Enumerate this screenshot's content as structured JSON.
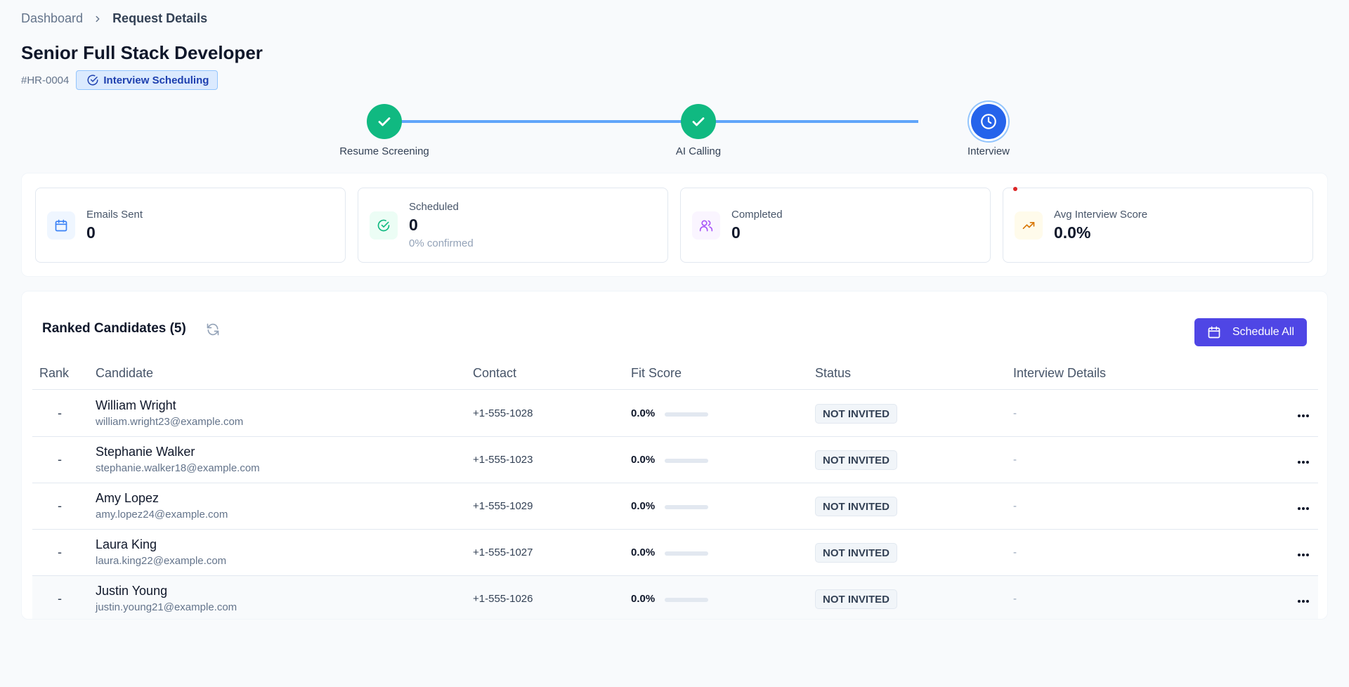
{
  "breadcrumb": {
    "root": "Dashboard",
    "current": "Request Details"
  },
  "page": {
    "title": "Senior Full Stack Developer",
    "request_id": "#HR-0004",
    "status": "Interview Scheduling"
  },
  "stepper": [
    {
      "label": "Resume Screening",
      "state": "done"
    },
    {
      "label": "AI Calling",
      "state": "done"
    },
    {
      "label": "Interview",
      "state": "current"
    }
  ],
  "stats": [
    {
      "label": "Emails Sent",
      "value": "0",
      "icon": "calendar-icon"
    },
    {
      "label": "Scheduled",
      "value": "0",
      "sub": "0% confirmed",
      "icon": "check-circle-icon"
    },
    {
      "label": "Completed",
      "value": "0",
      "icon": "users-icon"
    },
    {
      "label": "Avg Interview Score",
      "value": "0.0%",
      "icon": "trending-up-icon"
    }
  ],
  "table": {
    "title": "Ranked Candidates (5)",
    "schedule_all": "Schedule All",
    "columns": [
      "Rank",
      "Candidate",
      "Contact",
      "Fit Score",
      "Status",
      "Interview Details"
    ],
    "rows": [
      {
        "rank": "-",
        "name": "William Wright",
        "email": "william.wright23@example.com",
        "phone": "+1-555-1028",
        "fit": "0.0%",
        "fit_fraction": 0,
        "status": "NOT INVITED",
        "details": "-"
      },
      {
        "rank": "-",
        "name": "Stephanie Walker",
        "email": "stephanie.walker18@example.com",
        "phone": "+1-555-1023",
        "fit": "0.0%",
        "fit_fraction": 0,
        "status": "NOT INVITED",
        "details": "-"
      },
      {
        "rank": "-",
        "name": "Amy Lopez",
        "email": "amy.lopez24@example.com",
        "phone": "+1-555-1029",
        "fit": "0.0%",
        "fit_fraction": 0,
        "status": "NOT INVITED",
        "details": "-"
      },
      {
        "rank": "-",
        "name": "Laura King",
        "email": "laura.king22@example.com",
        "phone": "+1-555-1027",
        "fit": "0.0%",
        "fit_fraction": 0,
        "status": "NOT INVITED",
        "details": "-"
      },
      {
        "rank": "-",
        "name": "Justin Young",
        "email": "justin.young21@example.com",
        "phone": "+1-555-1026",
        "fit": "0.0%",
        "fit_fraction": 0,
        "status": "NOT INVITED",
        "details": "-"
      }
    ]
  },
  "colors": {
    "accent": "#4f46e5",
    "done": "#10b981",
    "current": "#2563eb",
    "line": "#60a5fa"
  }
}
